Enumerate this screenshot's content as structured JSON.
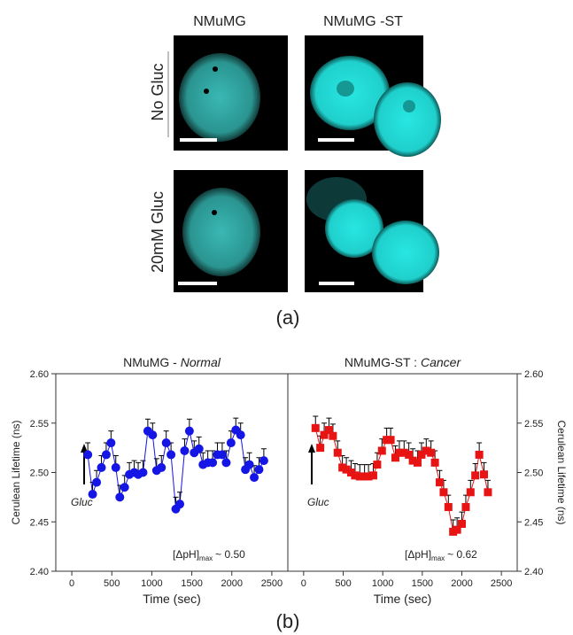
{
  "figure": {
    "column_labels": [
      "NMuMG",
      "NMuMG -ST"
    ],
    "row_labels": [
      "No Gluc",
      "20mM Gluc"
    ],
    "panel_a_label": "(a)",
    "panel_b_label": "(b)"
  },
  "chart_data": [
    {
      "type": "scatter",
      "title": "NMuMG -",
      "title_emphasis": "Normal",
      "x_label": "Time (sec)",
      "y_label": "Cerulean Lifetime (ns)",
      "xlim": [
        -200,
        2700
      ],
      "xticks": [
        0,
        500,
        1000,
        1500,
        2000,
        2500
      ],
      "ylim": [
        2.4,
        2.6
      ],
      "yticks": [
        {
          "value": 2.4,
          "label": "2.40"
        },
        {
          "value": 2.45,
          "label": "2.45"
        },
        {
          "value": 2.5,
          "label": "2.50"
        },
        {
          "value": 2.55,
          "label": "2.55"
        },
        {
          "value": 2.6,
          "label": "2.60"
        }
      ],
      "annotations": {
        "arrow_label": "Gluc",
        "delta_text": "[ΔpH]",
        "delta_sub": "max",
        "delta_value": "~ 0.50"
      },
      "series": [
        {
          "color": "#1515e6",
          "marker": "circle",
          "error": 0.012,
          "x": [
            200,
            260,
            310,
            370,
            430,
            490,
            550,
            600,
            660,
            720,
            780,
            830,
            890,
            950,
            1010,
            1060,
            1120,
            1180,
            1240,
            1300,
            1350,
            1410,
            1470,
            1530,
            1590,
            1640,
            1700,
            1760,
            1820,
            1880,
            1930,
            1990,
            2050,
            2110,
            2170,
            2220,
            2280,
            2340,
            2400
          ],
          "values": [
            2.518,
            2.478,
            2.49,
            2.505,
            2.518,
            2.53,
            2.505,
            2.475,
            2.485,
            2.498,
            2.5,
            2.498,
            2.5,
            2.542,
            2.538,
            2.502,
            2.505,
            2.53,
            2.518,
            2.463,
            2.468,
            2.522,
            2.542,
            2.52,
            2.524,
            2.508,
            2.51,
            2.51,
            2.518,
            2.518,
            2.51,
            2.53,
            2.543,
            2.538,
            2.503,
            2.508,
            2.495,
            2.503,
            2.512
          ]
        }
      ]
    },
    {
      "type": "scatter",
      "title": "NMuMG-ST :",
      "title_emphasis": "Cancer",
      "x_label": "Time (sec)",
      "y_label": "Cerulean Lifetime (ns)",
      "xlim": [
        -200,
        2700
      ],
      "xticks": [
        0,
        500,
        1000,
        1500,
        2000,
        2500
      ],
      "ylim": [
        2.4,
        2.6
      ],
      "yticks": [
        {
          "value": 2.4,
          "label": "2.40"
        },
        {
          "value": 2.45,
          "label": "2.45"
        },
        {
          "value": 2.5,
          "label": "2.50"
        },
        {
          "value": 2.55,
          "label": "2.55"
        },
        {
          "value": 2.6,
          "label": "2.60"
        }
      ],
      "annotations": {
        "arrow_label": "Gluc",
        "delta_text": "[ΔpH]",
        "delta_sub": "max",
        "delta_value": "~ 0.62"
      },
      "series": [
        {
          "color": "#e81414",
          "marker": "square",
          "error": 0.012,
          "x": [
            150,
            210,
            260,
            320,
            370,
            430,
            490,
            540,
            600,
            650,
            710,
            770,
            820,
            880,
            930,
            990,
            1050,
            1100,
            1160,
            1210,
            1270,
            1330,
            1380,
            1440,
            1490,
            1550,
            1610,
            1660,
            1720,
            1770,
            1830,
            1890,
            1940,
            2000,
            2050,
            2110,
            2170,
            2220,
            2280,
            2330
          ],
          "values": [
            2.545,
            2.525,
            2.538,
            2.543,
            2.537,
            2.52,
            2.505,
            2.503,
            2.5,
            2.497,
            2.496,
            2.496,
            2.496,
            2.497,
            2.508,
            2.522,
            2.533,
            2.533,
            2.515,
            2.52,
            2.52,
            2.518,
            2.512,
            2.51,
            2.518,
            2.522,
            2.52,
            2.51,
            2.49,
            2.48,
            2.465,
            2.44,
            2.442,
            2.448,
            2.465,
            2.48,
            2.497,
            2.518,
            2.498,
            2.48
          ]
        }
      ]
    }
  ]
}
